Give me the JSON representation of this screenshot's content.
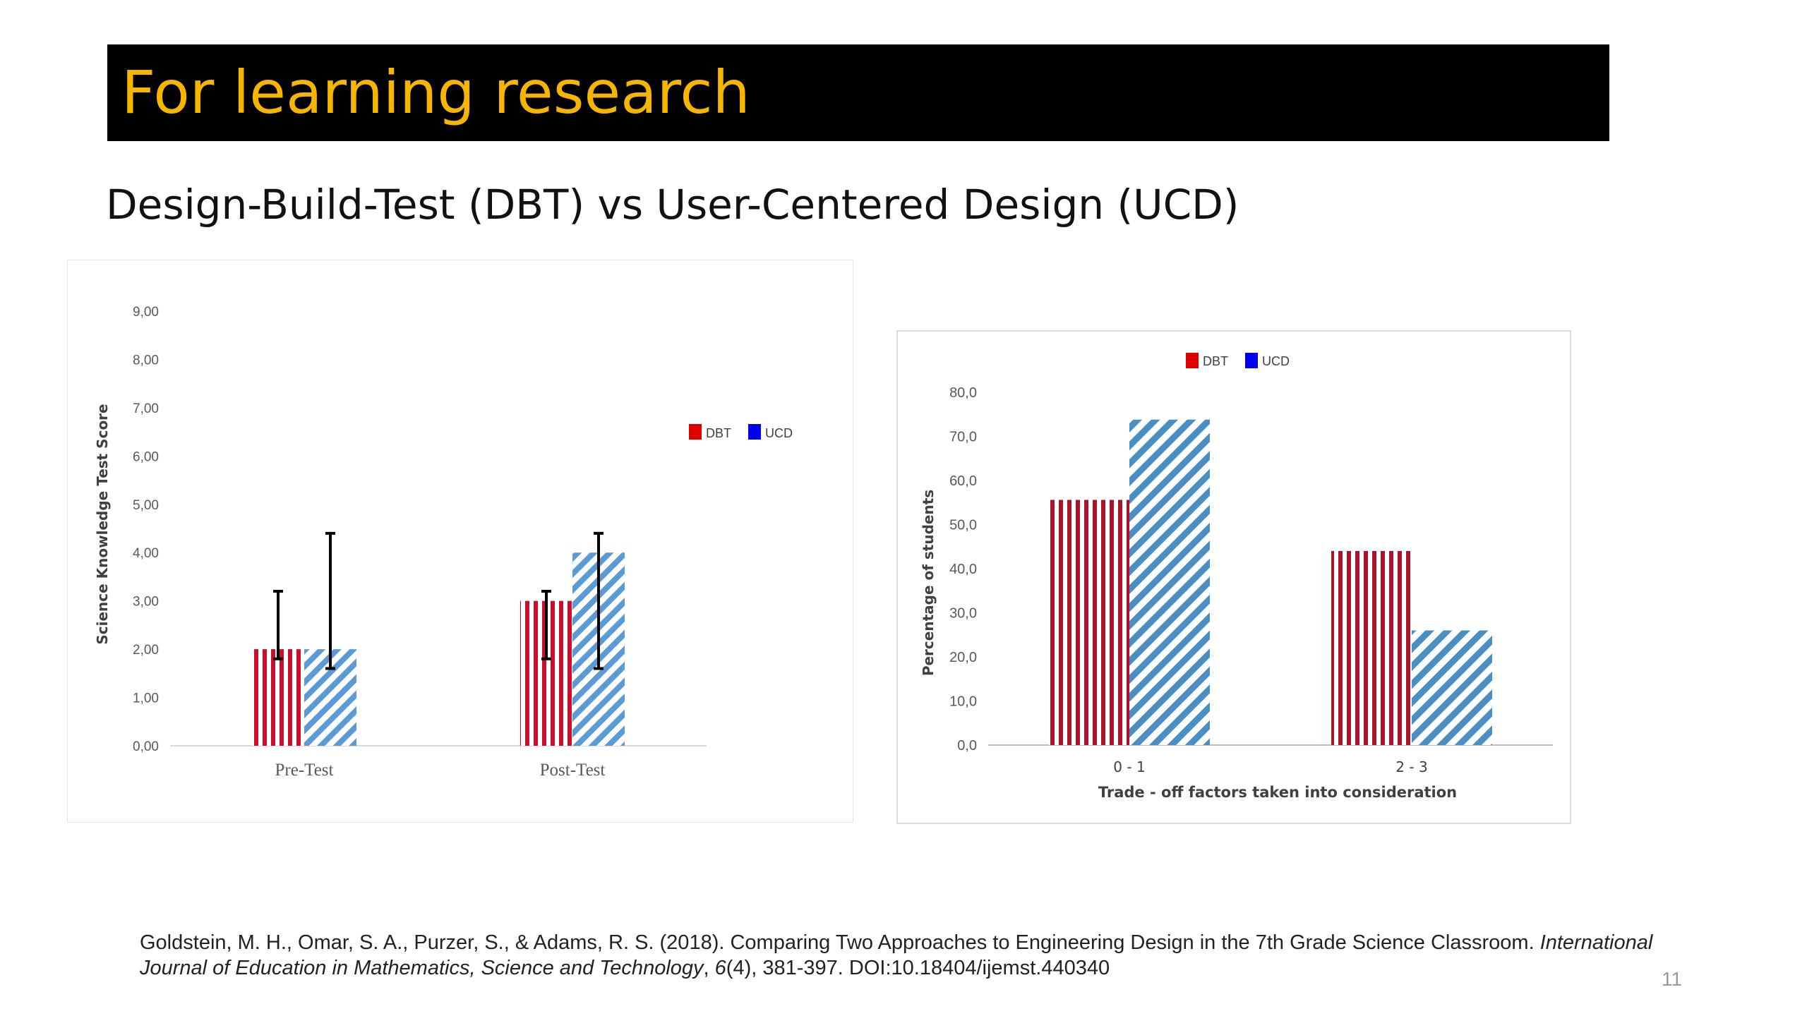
{
  "slide": {
    "title": "For learning research",
    "subtitle": "Design-Build-Test (DBT) vs User-Centered Design (UCD)",
    "page_number": "11",
    "citation": {
      "authors": "Goldstein, M. H., Omar, S. A., Purzer, S., & Adams, R. S. (2018). Comparing Two Approaches to Engineering Design in the 7th Grade Science Classroom. ",
      "journal": "International Journal of Education in Mathematics, Science and Technology",
      "sep": ", ",
      "volume": "6",
      "rest": "(4), 381-397. DOI:10.18404/ijemst.440340"
    }
  },
  "colors": {
    "title_bar": "#000000",
    "title_text": "#f5b500",
    "dbt": "#c8102e",
    "ucd": "#5b9bd5",
    "dbt_legend": "#e00000",
    "ucd_legend": "#0000ee"
  },
  "chart_data": [
    {
      "type": "bar",
      "title": "",
      "xlabel": "",
      "ylabel": "Science Knowledge Test Score",
      "categories": [
        "Pre-Test",
        "Post-Test"
      ],
      "ylim": [
        0,
        9
      ],
      "yticks": [
        "0,00",
        "1,00",
        "2,00",
        "3,00",
        "4,00",
        "5,00",
        "6,00",
        "7,00",
        "8,00",
        "9,00"
      ],
      "series": [
        {
          "name": "DBT",
          "values": [
            2.0,
            3.0
          ],
          "error_low": [
            1.8,
            1.8
          ],
          "error_high": [
            3.2,
            3.2
          ]
        },
        {
          "name": "UCD",
          "values": [
            2.0,
            4.0
          ],
          "error_low": [
            1.6,
            1.6
          ],
          "error_high": [
            4.4,
            4.4
          ]
        }
      ],
      "legend_position": "right",
      "grid": false
    },
    {
      "type": "bar",
      "title": "",
      "xlabel": "Trade - off factors taken into consideration",
      "ylabel": "Percentage of students",
      "categories": [
        "0 - 1",
        "2 - 3"
      ],
      "ylim": [
        0,
        80
      ],
      "yticks": [
        "0,0",
        "10,0",
        "20,0",
        "30,0",
        "40,0",
        "50,0",
        "60,0",
        "70,0",
        "80,0"
      ],
      "series": [
        {
          "name": "DBT",
          "values": [
            55.6,
            44.0
          ]
        },
        {
          "name": "UCD",
          "values": [
            73.8,
            26.0
          ]
        }
      ],
      "legend_position": "top",
      "grid": false
    }
  ]
}
